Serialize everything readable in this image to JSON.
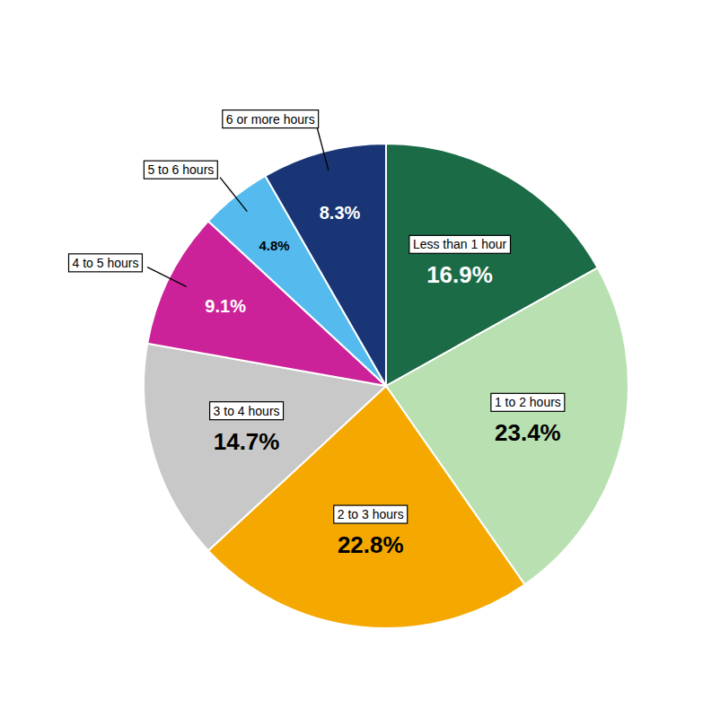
{
  "chart_data": {
    "type": "pie",
    "categories": [
      "Less than 1 hour",
      "1 to 2 hours",
      "2 to 3 hours",
      "3 to 4 hours",
      "4 to 5 hours",
      "5 to 6 hours",
      "6 or more hours"
    ],
    "values": [
      16.9,
      23.4,
      22.8,
      14.7,
      9.1,
      4.8,
      8.3
    ],
    "value_labels": [
      "16.9%",
      "23.4%",
      "22.8%",
      "14.7%",
      "9.1%",
      "4.8%",
      "8.3%"
    ],
    "colors": [
      "#1b6b47",
      "#b8e0b0",
      "#f5a800",
      "#c8c8c8",
      "#cc2299",
      "#55bbee",
      "#1a3575"
    ],
    "data_labels": true
  }
}
